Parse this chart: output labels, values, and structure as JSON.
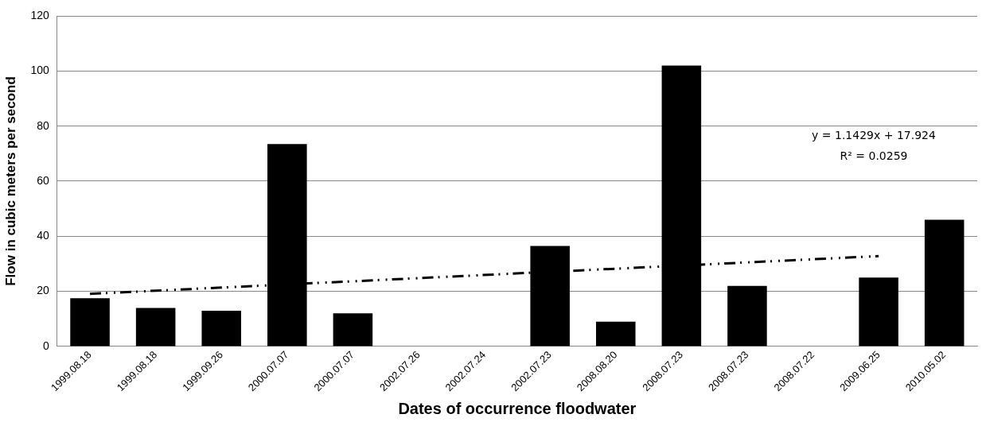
{
  "chart_data": {
    "type": "bar",
    "xlabel": "Dates of occurrence floodwater",
    "ylabel": "Flow in cubic meters per second",
    "categories": [
      "1999.08.18",
      "1999.08.18",
      "1999.09.26",
      "2000.07.07",
      "2000.07.07",
      "2002.07.26",
      "2002.07.24",
      "2002.07.23",
      "2008.08.20",
      "2008.07.23",
      "2008.07.23",
      "2008.07.22",
      "2009.06.25",
      "2010.05.02"
    ],
    "series": [
      {
        "color": "#000000",
        "values": [
          17.5,
          14,
          13,
          73.5,
          12,
          0,
          0,
          36.5,
          9,
          102,
          22,
          0,
          25,
          46
        ]
      },
      {
        "type": "line",
        "color": "#000000",
        "line_style": "dashed",
        "values": [
          19.1,
          null,
          null,
          null,
          null,
          null,
          null,
          null,
          null,
          null,
          null,
          null,
          32.8,
          null
        ]
      }
    ],
    "ylim": [
      0,
      120
    ],
    "yticks": [
      0,
      20,
      40,
      60,
      80,
      100,
      120
    ],
    "grid": "y",
    "legend": false,
    "annotations": [
      "y = 1.1429x + 17.924",
      "R² = 0.0259"
    ]
  }
}
